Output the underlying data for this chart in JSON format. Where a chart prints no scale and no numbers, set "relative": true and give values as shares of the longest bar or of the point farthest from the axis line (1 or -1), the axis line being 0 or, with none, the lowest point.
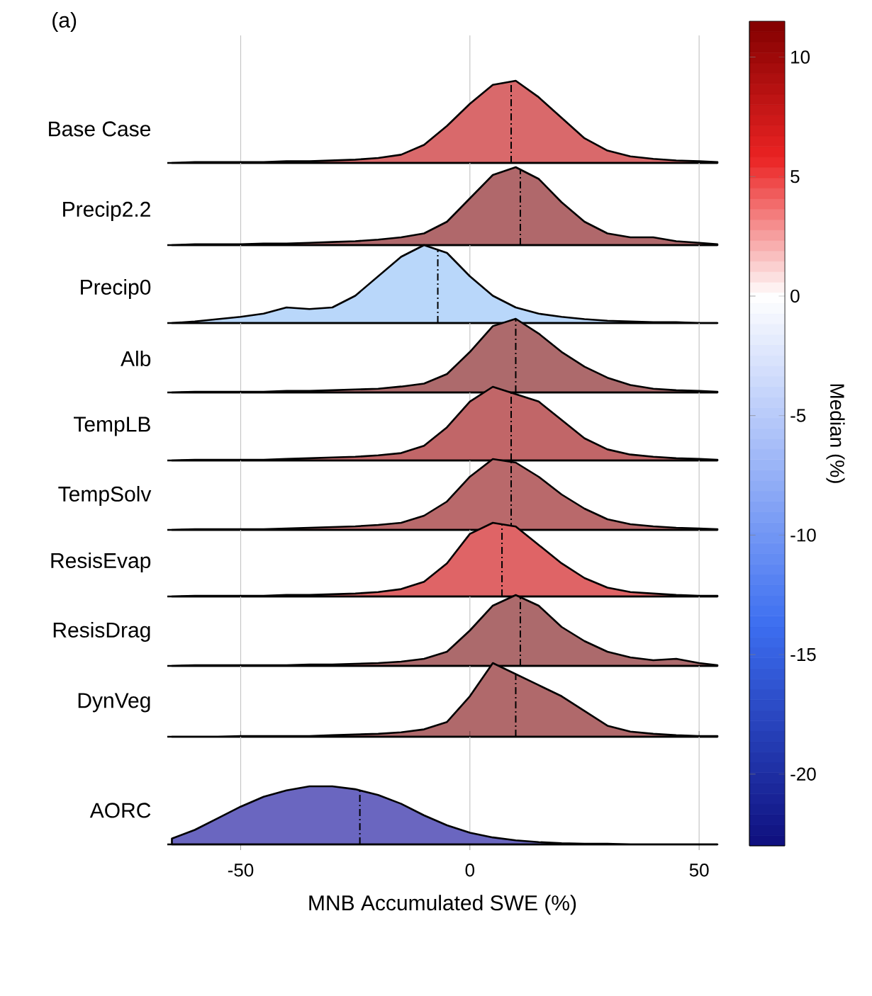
{
  "chart_data": [
    {
      "type": "area",
      "title": "(a)",
      "ylabel": "Base Case",
      "relative": true,
      "color": "#d9696b",
      "xlim": [
        -66,
        54
      ],
      "xticks": [
        -50,
        0,
        50
      ],
      "grid": "x",
      "tick_labels": false,
      "clabel": "Median (%)",
      "clim": [
        -23,
        11.5
      ],
      "cticks": [
        -20,
        -15,
        -10,
        -5,
        0,
        5,
        10
      ],
      "ref_lines": [
        {
          "axis": "x",
          "value": 9
        }
      ],
      "x": [
        -65,
        -60,
        -55,
        -50,
        -45,
        -40,
        -35,
        -30,
        -25,
        -20,
        -15,
        -10,
        -5,
        0,
        5,
        10,
        15,
        20,
        25,
        30,
        35,
        40,
        45,
        50,
        54
      ],
      "values": [
        0,
        0.01,
        0.01,
        0.01,
        0.01,
        0.02,
        0.02,
        0.03,
        0.04,
        0.06,
        0.1,
        0.22,
        0.45,
        0.72,
        0.95,
        1,
        0.8,
        0.55,
        0.3,
        0.15,
        0.08,
        0.05,
        0.03,
        0.02,
        0.01
      ]
    },
    {
      "type": "area",
      "ylabel": "Precip2.2",
      "relative": true,
      "color": "#b0686b",
      "xlim": [
        -66,
        54
      ],
      "xticks": [
        -50,
        0,
        50
      ],
      "grid": "x",
      "tick_labels": false,
      "ref_lines": [
        {
          "axis": "x",
          "value": 11
        }
      ],
      "x": [
        -65,
        -60,
        -55,
        -50,
        -45,
        -40,
        -35,
        -30,
        -25,
        -20,
        -15,
        -10,
        -5,
        0,
        5,
        10,
        15,
        20,
        25,
        30,
        35,
        40,
        45,
        50,
        54
      ],
      "values": [
        0,
        0.01,
        0.01,
        0.01,
        0.02,
        0.02,
        0.03,
        0.04,
        0.05,
        0.07,
        0.1,
        0.15,
        0.3,
        0.6,
        0.9,
        1,
        0.85,
        0.55,
        0.3,
        0.15,
        0.1,
        0.1,
        0.05,
        0.03,
        0.01
      ]
    },
    {
      "type": "area",
      "ylabel": "Precip0",
      "relative": true,
      "color": "#b9d7fa",
      "xlim": [
        -66,
        54
      ],
      "xticks": [
        -50,
        0,
        50
      ],
      "grid": "x",
      "tick_labels": false,
      "ref_lines": [
        {
          "axis": "x",
          "value": -7
        }
      ],
      "x": [
        -65,
        -60,
        -55,
        -50,
        -45,
        -40,
        -35,
        -30,
        -25,
        -20,
        -15,
        -10,
        -5,
        0,
        5,
        10,
        15,
        20,
        25,
        30,
        35,
        40,
        45,
        50,
        54
      ],
      "values": [
        0,
        0.02,
        0.05,
        0.08,
        0.12,
        0.2,
        0.18,
        0.2,
        0.35,
        0.6,
        0.85,
        1,
        0.9,
        0.6,
        0.35,
        0.2,
        0.12,
        0.08,
        0.05,
        0.03,
        0.02,
        0.01,
        0.01,
        0,
        0
      ]
    },
    {
      "type": "area",
      "ylabel": "Alb",
      "relative": true,
      "color": "#ad6a6c",
      "xlim": [
        -66,
        54
      ],
      "xticks": [
        -50,
        0,
        50
      ],
      "grid": "x",
      "tick_labels": false,
      "ref_lines": [
        {
          "axis": "x",
          "value": 10
        }
      ],
      "x": [
        -65,
        -60,
        -55,
        -50,
        -45,
        -40,
        -35,
        -30,
        -25,
        -20,
        -15,
        -10,
        -5,
        0,
        5,
        10,
        15,
        20,
        25,
        30,
        35,
        40,
        45,
        50,
        54
      ],
      "values": [
        0,
        0.01,
        0.01,
        0.01,
        0.01,
        0.02,
        0.02,
        0.03,
        0.04,
        0.05,
        0.08,
        0.12,
        0.25,
        0.55,
        0.9,
        1,
        0.8,
        0.55,
        0.35,
        0.2,
        0.1,
        0.05,
        0.03,
        0.02,
        0.01
      ]
    },
    {
      "type": "area",
      "ylabel": "TempLB",
      "relative": true,
      "color": "#c16668",
      "xlim": [
        -66,
        54
      ],
      "xticks": [
        -50,
        0,
        50
      ],
      "grid": "x",
      "tick_labels": false,
      "ref_lines": [
        {
          "axis": "x",
          "value": 9
        }
      ],
      "x": [
        -65,
        -60,
        -55,
        -50,
        -45,
        -40,
        -35,
        -30,
        -25,
        -20,
        -15,
        -10,
        -5,
        0,
        5,
        10,
        15,
        20,
        25,
        30,
        35,
        40,
        45,
        50,
        54
      ],
      "values": [
        0,
        0.01,
        0.01,
        0.01,
        0.01,
        0.02,
        0.03,
        0.04,
        0.05,
        0.07,
        0.1,
        0.2,
        0.45,
        0.8,
        1,
        0.9,
        0.8,
        0.55,
        0.3,
        0.15,
        0.08,
        0.05,
        0.03,
        0.02,
        0.01
      ]
    },
    {
      "type": "area",
      "ylabel": "TempSolv",
      "relative": true,
      "color": "#b9696b",
      "xlim": [
        -66,
        54
      ],
      "xticks": [
        -50,
        0,
        50
      ],
      "grid": "x",
      "tick_labels": false,
      "ref_lines": [
        {
          "axis": "x",
          "value": 9
        }
      ],
      "x": [
        -65,
        -60,
        -55,
        -50,
        -45,
        -40,
        -35,
        -30,
        -25,
        -20,
        -15,
        -10,
        -5,
        0,
        5,
        10,
        15,
        20,
        25,
        30,
        35,
        40,
        45,
        50,
        54
      ],
      "values": [
        0,
        0.01,
        0.01,
        0.01,
        0.01,
        0.02,
        0.03,
        0.04,
        0.05,
        0.07,
        0.1,
        0.2,
        0.4,
        0.75,
        1,
        0.95,
        0.75,
        0.5,
        0.3,
        0.15,
        0.08,
        0.05,
        0.03,
        0.02,
        0.01
      ]
    },
    {
      "type": "area",
      "ylabel": "ResisEvap",
      "relative": true,
      "color": "#df6466",
      "xlim": [
        -66,
        54
      ],
      "xticks": [
        -50,
        0,
        50
      ],
      "grid": "x",
      "tick_labels": false,
      "ref_lines": [
        {
          "axis": "x",
          "value": 7
        }
      ],
      "x": [
        -65,
        -60,
        -55,
        -50,
        -45,
        -40,
        -35,
        -30,
        -25,
        -20,
        -15,
        -10,
        -5,
        0,
        5,
        10,
        15,
        20,
        25,
        30,
        35,
        40,
        45,
        50,
        54
      ],
      "values": [
        0,
        0.01,
        0.01,
        0.01,
        0.01,
        0.02,
        0.02,
        0.03,
        0.04,
        0.06,
        0.1,
        0.2,
        0.45,
        0.85,
        1,
        0.95,
        0.7,
        0.45,
        0.25,
        0.12,
        0.06,
        0.04,
        0.02,
        0.01,
        0.01
      ]
    },
    {
      "type": "area",
      "ylabel": "ResisDrag",
      "relative": true,
      "color": "#ac6a6c",
      "xlim": [
        -66,
        54
      ],
      "xticks": [
        -50,
        0,
        50
      ],
      "grid": "x",
      "tick_labels": false,
      "ref_lines": [
        {
          "axis": "x",
          "value": 11
        }
      ],
      "x": [
        -65,
        -60,
        -55,
        -50,
        -45,
        -40,
        -35,
        -30,
        -25,
        -20,
        -15,
        -10,
        -5,
        0,
        5,
        10,
        15,
        20,
        25,
        30,
        35,
        40,
        45,
        50,
        54
      ],
      "values": [
        0,
        0.01,
        0.01,
        0.01,
        0.01,
        0.01,
        0.02,
        0.02,
        0.03,
        0.04,
        0.06,
        0.1,
        0.2,
        0.5,
        0.85,
        1,
        0.85,
        0.55,
        0.35,
        0.2,
        0.12,
        0.08,
        0.1,
        0.04,
        0.01
      ]
    },
    {
      "type": "area",
      "ylabel": "DynVeg",
      "relative": true,
      "color": "#b0696b",
      "xlim": [
        -66,
        54
      ],
      "xticks": [
        -50,
        0,
        50
      ],
      "grid": "x",
      "tick_labels": false,
      "ref_lines": [
        {
          "axis": "x",
          "value": 10
        }
      ],
      "x": [
        -65,
        -60,
        -55,
        -50,
        -45,
        -40,
        -35,
        -30,
        -25,
        -20,
        -15,
        -10,
        -5,
        0,
        5,
        10,
        15,
        20,
        25,
        30,
        35,
        40,
        45,
        50,
        54
      ],
      "values": [
        0,
        0,
        0,
        0.01,
        0.01,
        0.01,
        0.01,
        0.02,
        0.03,
        0.04,
        0.06,
        0.1,
        0.2,
        0.55,
        1,
        0.85,
        0.7,
        0.55,
        0.35,
        0.15,
        0.07,
        0.04,
        0.02,
        0.01,
        0.01
      ]
    },
    {
      "type": "area",
      "ylabel": "AORC",
      "xlabel": "MNB Accumulated SWE (%)",
      "relative": true,
      "color": "#6a66c0",
      "xlim": [
        -66,
        54
      ],
      "xticks": [
        -50,
        0,
        50
      ],
      "grid": "x",
      "tick_labels": "x",
      "ref_lines": [
        {
          "axis": "x",
          "value": -24
        }
      ],
      "x": [
        -65,
        -60,
        -55,
        -50,
        -45,
        -40,
        -35,
        -30,
        -25,
        -20,
        -15,
        -10,
        -5,
        0,
        5,
        10,
        15,
        20,
        25,
        30,
        35,
        40,
        45,
        50,
        54
      ],
      "values": [
        0.1,
        0.25,
        0.45,
        0.65,
        0.82,
        0.93,
        1,
        1,
        0.95,
        0.85,
        0.7,
        0.5,
        0.33,
        0.2,
        0.12,
        0.07,
        0.04,
        0.02,
        0.01,
        0.01,
        0,
        0,
        0,
        0,
        0
      ]
    }
  ]
}
